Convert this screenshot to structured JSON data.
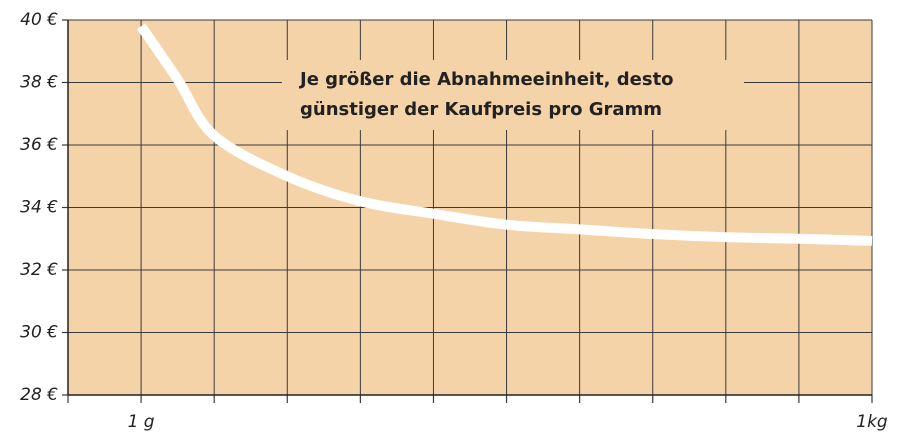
{
  "chart_data": {
    "type": "line",
    "annotation": [
      "Je größer die Abnahmeeinheit, desto",
      "günstiger der Kaufpreis pro Gramm"
    ],
    "x": [
      1,
      1.5,
      2,
      3,
      4,
      5,
      6,
      7,
      8,
      9,
      10,
      11
    ],
    "series": [
      {
        "name": null,
        "color": "#ffffff",
        "values": [
          39.8,
          38.1,
          36.3,
          35.0,
          34.2,
          33.8,
          33.45,
          33.3,
          33.15,
          33.05,
          33.0,
          32.93
        ]
      }
    ],
    "xlim": [
      0,
      11
    ],
    "xticks": [
      {
        "value": 0,
        "label": null
      },
      {
        "value": 1,
        "label": "1 g"
      },
      {
        "value": 2,
        "label": null
      },
      {
        "value": 3,
        "label": null
      },
      {
        "value": 4,
        "label": null
      },
      {
        "value": 5,
        "label": null
      },
      {
        "value": 6,
        "label": null
      },
      {
        "value": 7,
        "label": null
      },
      {
        "value": 8,
        "label": null
      },
      {
        "value": 9,
        "label": null
      },
      {
        "value": 10,
        "label": null
      },
      {
        "value": 11,
        "label": "1kg"
      }
    ],
    "ylim": [
      28,
      40
    ],
    "yticks": [
      {
        "value": 28,
        "label": "28 €"
      },
      {
        "value": 30,
        "label": "30 €"
      },
      {
        "value": 32,
        "label": "32 €"
      },
      {
        "value": 34,
        "label": "34 €"
      },
      {
        "value": 36,
        "label": "36 €"
      },
      {
        "value": 38,
        "label": "38 €"
      },
      {
        "value": 40,
        "label": "40 €"
      }
    ],
    "background": "#f5d3a8",
    "grid_color": "#3a3a3a",
    "grid": true
  }
}
